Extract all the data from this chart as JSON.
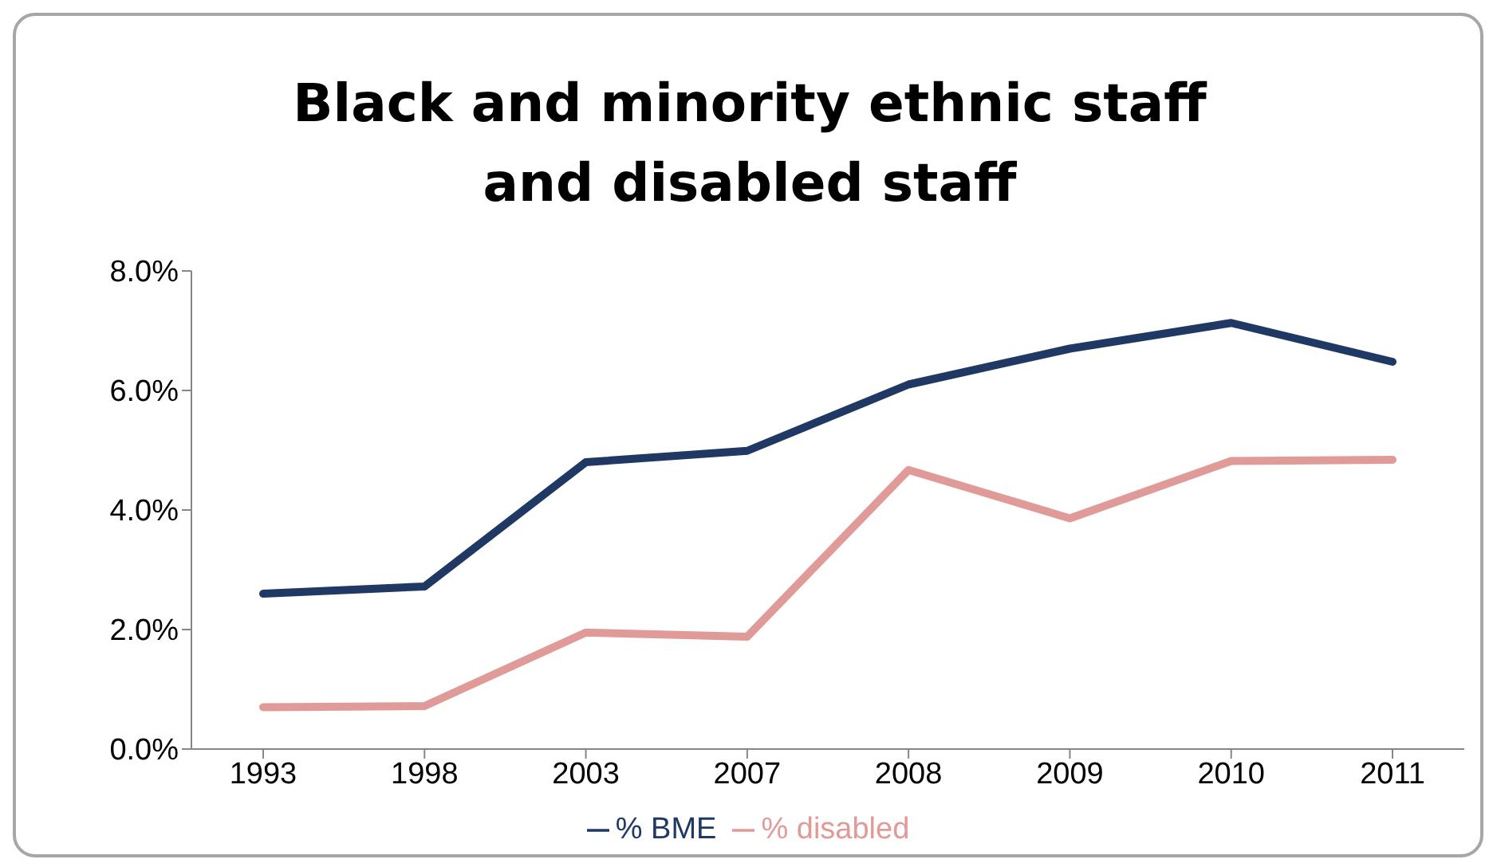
{
  "chart_data": {
    "type": "line",
    "title": "Black and minority ethnic staff and disabled staff",
    "categories": [
      "1993",
      "1998",
      "2003",
      "2007",
      "2008",
      "2009",
      "2010",
      "2011"
    ],
    "series": [
      {
        "name": "% BME",
        "color": "#1f3864",
        "values": [
          2.6,
          2.72,
          4.8,
          4.99,
          6.1,
          6.7,
          7.13,
          6.48
        ]
      },
      {
        "name": "% disabled",
        "color": "#e09a98",
        "values": [
          0.7,
          0.72,
          1.95,
          1.88,
          4.67,
          3.86,
          4.82,
          4.84
        ]
      }
    ],
    "ylim": [
      0,
      8
    ],
    "yticks": [
      {
        "value": 0,
        "label": "0.0%"
      },
      {
        "value": 2,
        "label": "2.0%"
      },
      {
        "value": 4,
        "label": "4.0%"
      },
      {
        "value": 6,
        "label": "6.0%"
      },
      {
        "value": 8,
        "label": "8.0%"
      }
    ],
    "grid": false,
    "legend": "bottom",
    "marker": "none",
    "line_style": "solid"
  }
}
